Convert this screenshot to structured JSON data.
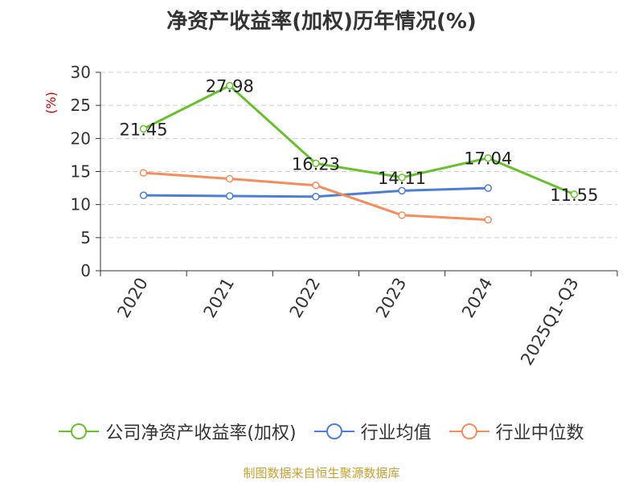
{
  "title": "净资产收益率(加权)历年情况(%)",
  "source": "制图数据来自恒生聚源数据库",
  "chart_data": {
    "type": "line",
    "title": "净资产收益率(加权)历年情况(%)",
    "ylabel": "(%)",
    "ylabel_color": "#cc0000",
    "ylim": [
      0,
      30
    ],
    "yticks": [
      "0",
      "5",
      "10",
      "15",
      "20",
      "25",
      "30"
    ],
    "grid": true,
    "legend_position": "bottom",
    "categories": [
      "2020",
      "2021",
      "2022",
      "2023",
      "2024",
      "2025Q1-Q3"
    ],
    "series": [
      {
        "name": "公司净资产收益率(加权)",
        "color": "#66c22a",
        "values": [
          21.45,
          27.98,
          16.23,
          14.11,
          17.04,
          11.55
        ],
        "labels": [
          "21.45",
          "27.98",
          "16.23",
          "14.11",
          "17.04",
          "11.55"
        ]
      },
      {
        "name": "行业均值",
        "color": "#4a7fd8",
        "values": [
          11.4,
          11.3,
          11.2,
          12.1,
          12.5,
          null
        ]
      },
      {
        "name": "行业中位数",
        "color": "#f78c5a",
        "values": [
          14.8,
          13.9,
          12.9,
          8.4,
          7.7,
          null
        ]
      }
    ]
  }
}
